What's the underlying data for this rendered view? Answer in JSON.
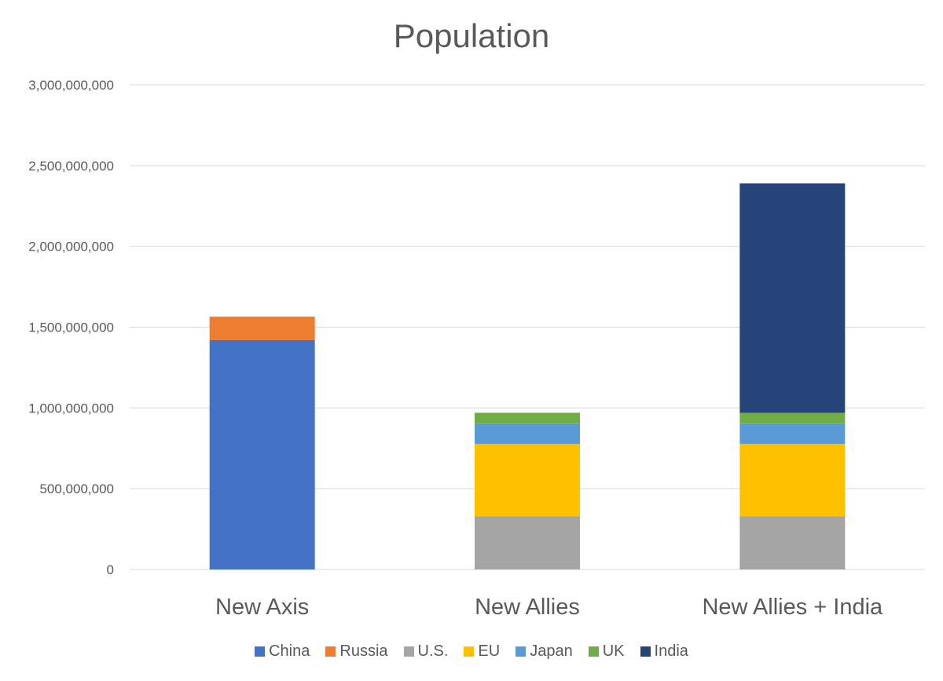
{
  "chart_data": {
    "type": "bar",
    "stacked": true,
    "title": "Population",
    "xlabel": "",
    "ylabel": "",
    "ylim": [
      0,
      3000000000
    ],
    "yticks": [
      0,
      500000000,
      1000000000,
      1500000000,
      2000000000,
      2500000000,
      3000000000
    ],
    "ytick_labels": [
      "0",
      "500,000,000",
      "1,000,000,000",
      "1,500,000,000",
      "2,000,000,000",
      "2,500,000,000",
      "3,000,000,000"
    ],
    "grid": true,
    "legend_position": "bottom",
    "categories": [
      "New Axis",
      "New Allies",
      "New Allies + India"
    ],
    "series": [
      {
        "name": "China",
        "color": "#4472C4",
        "values": [
          1420000000,
          0,
          0
        ]
      },
      {
        "name": "Russia",
        "color": "#ED7D31",
        "values": [
          145000000,
          0,
          0
        ]
      },
      {
        "name": "U.S.",
        "color": "#A5A5A5",
        "values": [
          0,
          330000000,
          330000000
        ]
      },
      {
        "name": "EU",
        "color": "#FFC000",
        "values": [
          0,
          447000000,
          447000000
        ]
      },
      {
        "name": "Japan",
        "color": "#5B9BD5",
        "values": [
          0,
          126000000,
          126000000
        ]
      },
      {
        "name": "UK",
        "color": "#70AD47",
        "values": [
          0,
          67000000,
          67000000
        ]
      },
      {
        "name": "India",
        "color": "#264478",
        "values": [
          0,
          0,
          1420000000
        ]
      }
    ]
  }
}
